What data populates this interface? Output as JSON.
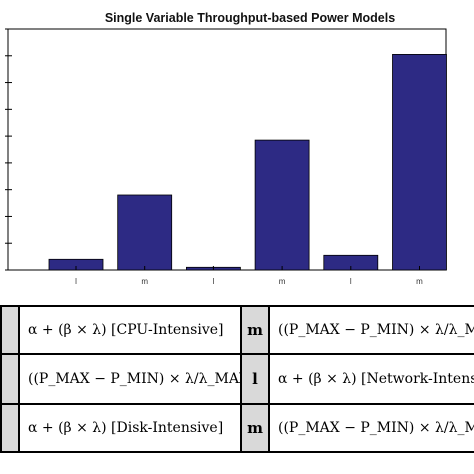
{
  "chart_data": {
    "type": "bar",
    "title": "Single Variable Throughput-based Power Models",
    "categories": [
      "l",
      "m",
      "l",
      "m",
      "l",
      "m"
    ],
    "values": [
      4,
      28,
      1,
      48.5,
      5.5,
      80.5
    ],
    "ylim": [
      0,
      90
    ],
    "bar_color": "#2d2a84",
    "grid": false
  },
  "table": {
    "rows": [
      {
        "left_text": "α + (β × λ)  [CPU-Intensive]",
        "label": "m",
        "right_text": "((P_MAX − P_MIN) × λ/λ_MAX) + P_MIN  [Disk-Intensive]"
      },
      {
        "left_text": "((P_MAX − P_MIN) × λ/λ_MAX) + P_MIN  [CPU-Intensive]",
        "label": "l",
        "right_text": "α + (β × λ)  [Network-Intensive]"
      },
      {
        "left_text": "α + (β × λ)  [Disk-Intensive]",
        "label": "m",
        "right_text": "((P_MAX − P_MIN) × λ/λ_MAX) + P_MIN  [Network-Intensive]"
      }
    ]
  }
}
